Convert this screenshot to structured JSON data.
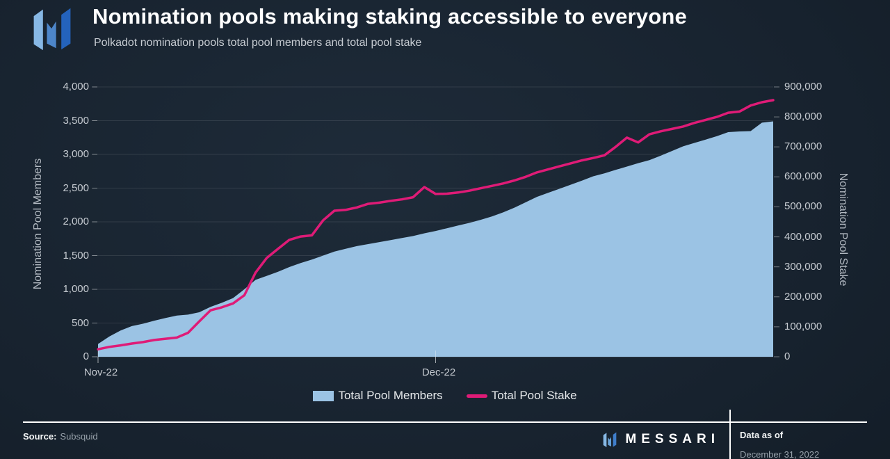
{
  "header": {
    "title": "Nomination pools making staking accessible to everyone",
    "subtitle": "Polkadot nomination pools total pool members and total pool stake"
  },
  "legend": {
    "members_label": "Total Pool Members",
    "stake_label": "Total Pool Stake"
  },
  "footer": {
    "source_label": "Source:",
    "source_value": "Subsquid",
    "brand": "MESSARI",
    "data_as_of_label": "Data as of",
    "data_as_of_value": "December 31, 2022"
  },
  "colors": {
    "area_fill": "#9bc3e4",
    "line_stroke": "#df1b77",
    "grid": "rgba(255,255,255,0.10)",
    "axis_line": "rgba(255,255,255,0.18)",
    "tick_dash": "rgba(255,255,255,0.40)",
    "logo_left_blue": "#87b8e5",
    "logo_mid_blue": "#4d86c9",
    "logo_right_blue": "#2463bc"
  },
  "chart_data": {
    "type": "area+line",
    "title": "Nomination pools making staking accessible to everyone",
    "subtitle": "Polkadot nomination pools total pool members and total pool stake",
    "grid": true,
    "legend_position": "bottom-center",
    "x": [
      "2022-11-01",
      "2022-11-02",
      "2022-11-03",
      "2022-11-04",
      "2022-11-05",
      "2022-11-06",
      "2022-11-07",
      "2022-11-08",
      "2022-11-09",
      "2022-11-10",
      "2022-11-11",
      "2022-11-12",
      "2022-11-13",
      "2022-11-14",
      "2022-11-15",
      "2022-11-16",
      "2022-11-17",
      "2022-11-18",
      "2022-11-19",
      "2022-11-20",
      "2022-11-21",
      "2022-11-22",
      "2022-11-23",
      "2022-11-24",
      "2022-11-25",
      "2022-11-26",
      "2022-11-27",
      "2022-11-28",
      "2022-11-29",
      "2022-11-30",
      "2022-12-01",
      "2022-12-02",
      "2022-12-03",
      "2022-12-04",
      "2022-12-05",
      "2022-12-06",
      "2022-12-07",
      "2022-12-08",
      "2022-12-09",
      "2022-12-10",
      "2022-12-11",
      "2022-12-12",
      "2022-12-13",
      "2022-12-14",
      "2022-12-15",
      "2022-12-16",
      "2022-12-17",
      "2022-12-18",
      "2022-12-19",
      "2022-12-20",
      "2022-12-21",
      "2022-12-22",
      "2022-12-23",
      "2022-12-24",
      "2022-12-25",
      "2022-12-26",
      "2022-12-27",
      "2022-12-28",
      "2022-12-29",
      "2022-12-30",
      "2022-12-31"
    ],
    "series": [
      {
        "name": "Total Pool Members",
        "type": "area",
        "axis": "left",
        "color": "#9bc3e4",
        "values": [
          190,
          300,
          390,
          455,
          490,
          535,
          575,
          610,
          625,
          660,
          740,
          800,
          870,
          1000,
          1140,
          1200,
          1260,
          1330,
          1390,
          1440,
          1500,
          1560,
          1600,
          1640,
          1670,
          1700,
          1730,
          1760,
          1790,
          1830,
          1865,
          1905,
          1945,
          1985,
          2030,
          2080,
          2140,
          2210,
          2290,
          2370,
          2430,
          2490,
          2550,
          2610,
          2675,
          2720,
          2770,
          2820,
          2870,
          2915,
          2980,
          3050,
          3120,
          3170,
          3220,
          3270,
          3330,
          3340,
          3345,
          3470,
          3490
        ]
      },
      {
        "name": "Total Pool Stake",
        "type": "line",
        "axis": "right",
        "color": "#df1b77",
        "values": [
          25000,
          33000,
          38000,
          44000,
          49000,
          56000,
          60000,
          64000,
          80000,
          118000,
          155000,
          165000,
          178000,
          205000,
          281000,
          330000,
          360000,
          390000,
          401000,
          405000,
          455000,
          487000,
          490000,
          498000,
          510000,
          514000,
          520000,
          525000,
          532000,
          566000,
          543000,
          544000,
          548000,
          554000,
          562000,
          570000,
          578000,
          588000,
          600000,
          615000,
          625000,
          635000,
          645000,
          655000,
          663000,
          672000,
          700000,
          731000,
          715000,
          742000,
          752000,
          760000,
          768000,
          780000,
          790000,
          800000,
          814000,
          818000,
          838000,
          849000,
          856000
        ]
      }
    ],
    "left_axis": {
      "title": "Nomination Pool Members",
      "min": 0,
      "max": 4000,
      "step": 500,
      "tick_labels": [
        "0",
        "500",
        "1,000",
        "1,500",
        "2,000",
        "2,500",
        "3,000",
        "3,500",
        "4,000"
      ]
    },
    "right_axis": {
      "title": "Nomination Pool Stake",
      "min": 0,
      "max": 900000,
      "step": 100000,
      "tick_labels": [
        "0",
        "100,000",
        "200,000",
        "300,000",
        "400,000",
        "500,000",
        "600,000",
        "700,000",
        "800,000",
        "900,000"
      ]
    },
    "x_axis": {
      "ticks": [
        {
          "label": "Nov-22",
          "index": 0
        },
        {
          "label": "Dec-22",
          "index": 30
        }
      ]
    }
  }
}
